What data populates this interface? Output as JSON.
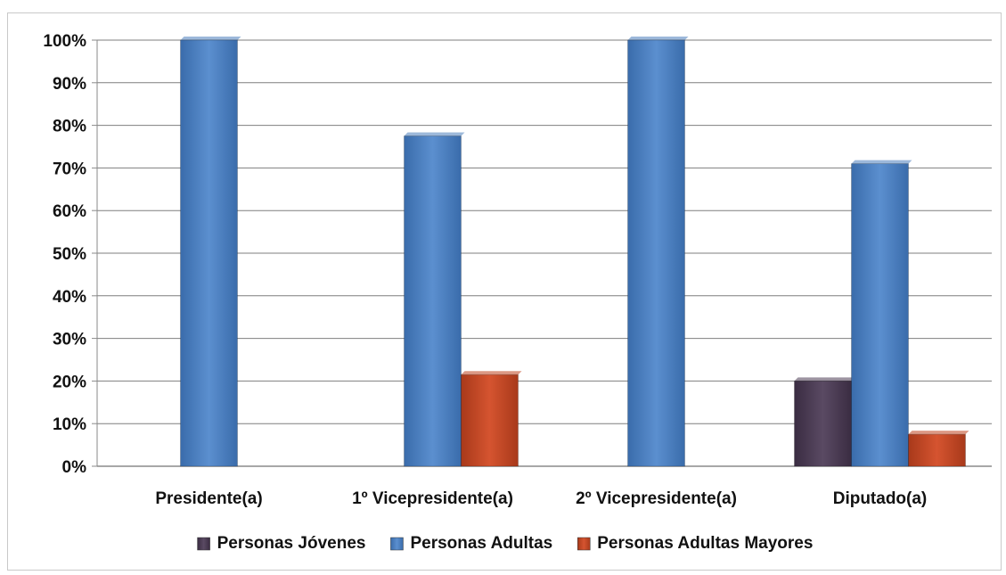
{
  "chart_data": {
    "type": "bar",
    "title": "",
    "xlabel": "",
    "ylabel": "",
    "ylim": [
      0,
      100
    ],
    "y_tick_step": 10,
    "y_tick_suffix": "%",
    "grid": true,
    "legend_position": "bottom",
    "categories": [
      "Presidente(a)",
      "1º Vicepresidente(a)",
      "2º Vicepresidente(a)",
      "Diputado(a)"
    ],
    "series": [
      {
        "name": "Personas Jóvenes",
        "color": "#4a3b52",
        "values": [
          0,
          0,
          0,
          20
        ]
      },
      {
        "name": "Personas Adultas",
        "color": "#4a7ebb",
        "values": [
          100,
          77.5,
          100,
          71
        ]
      },
      {
        "name": "Personas Adultas Mayores",
        "color": "#c0441f",
        "values": [
          0,
          21.5,
          0,
          7.5
        ]
      }
    ]
  }
}
